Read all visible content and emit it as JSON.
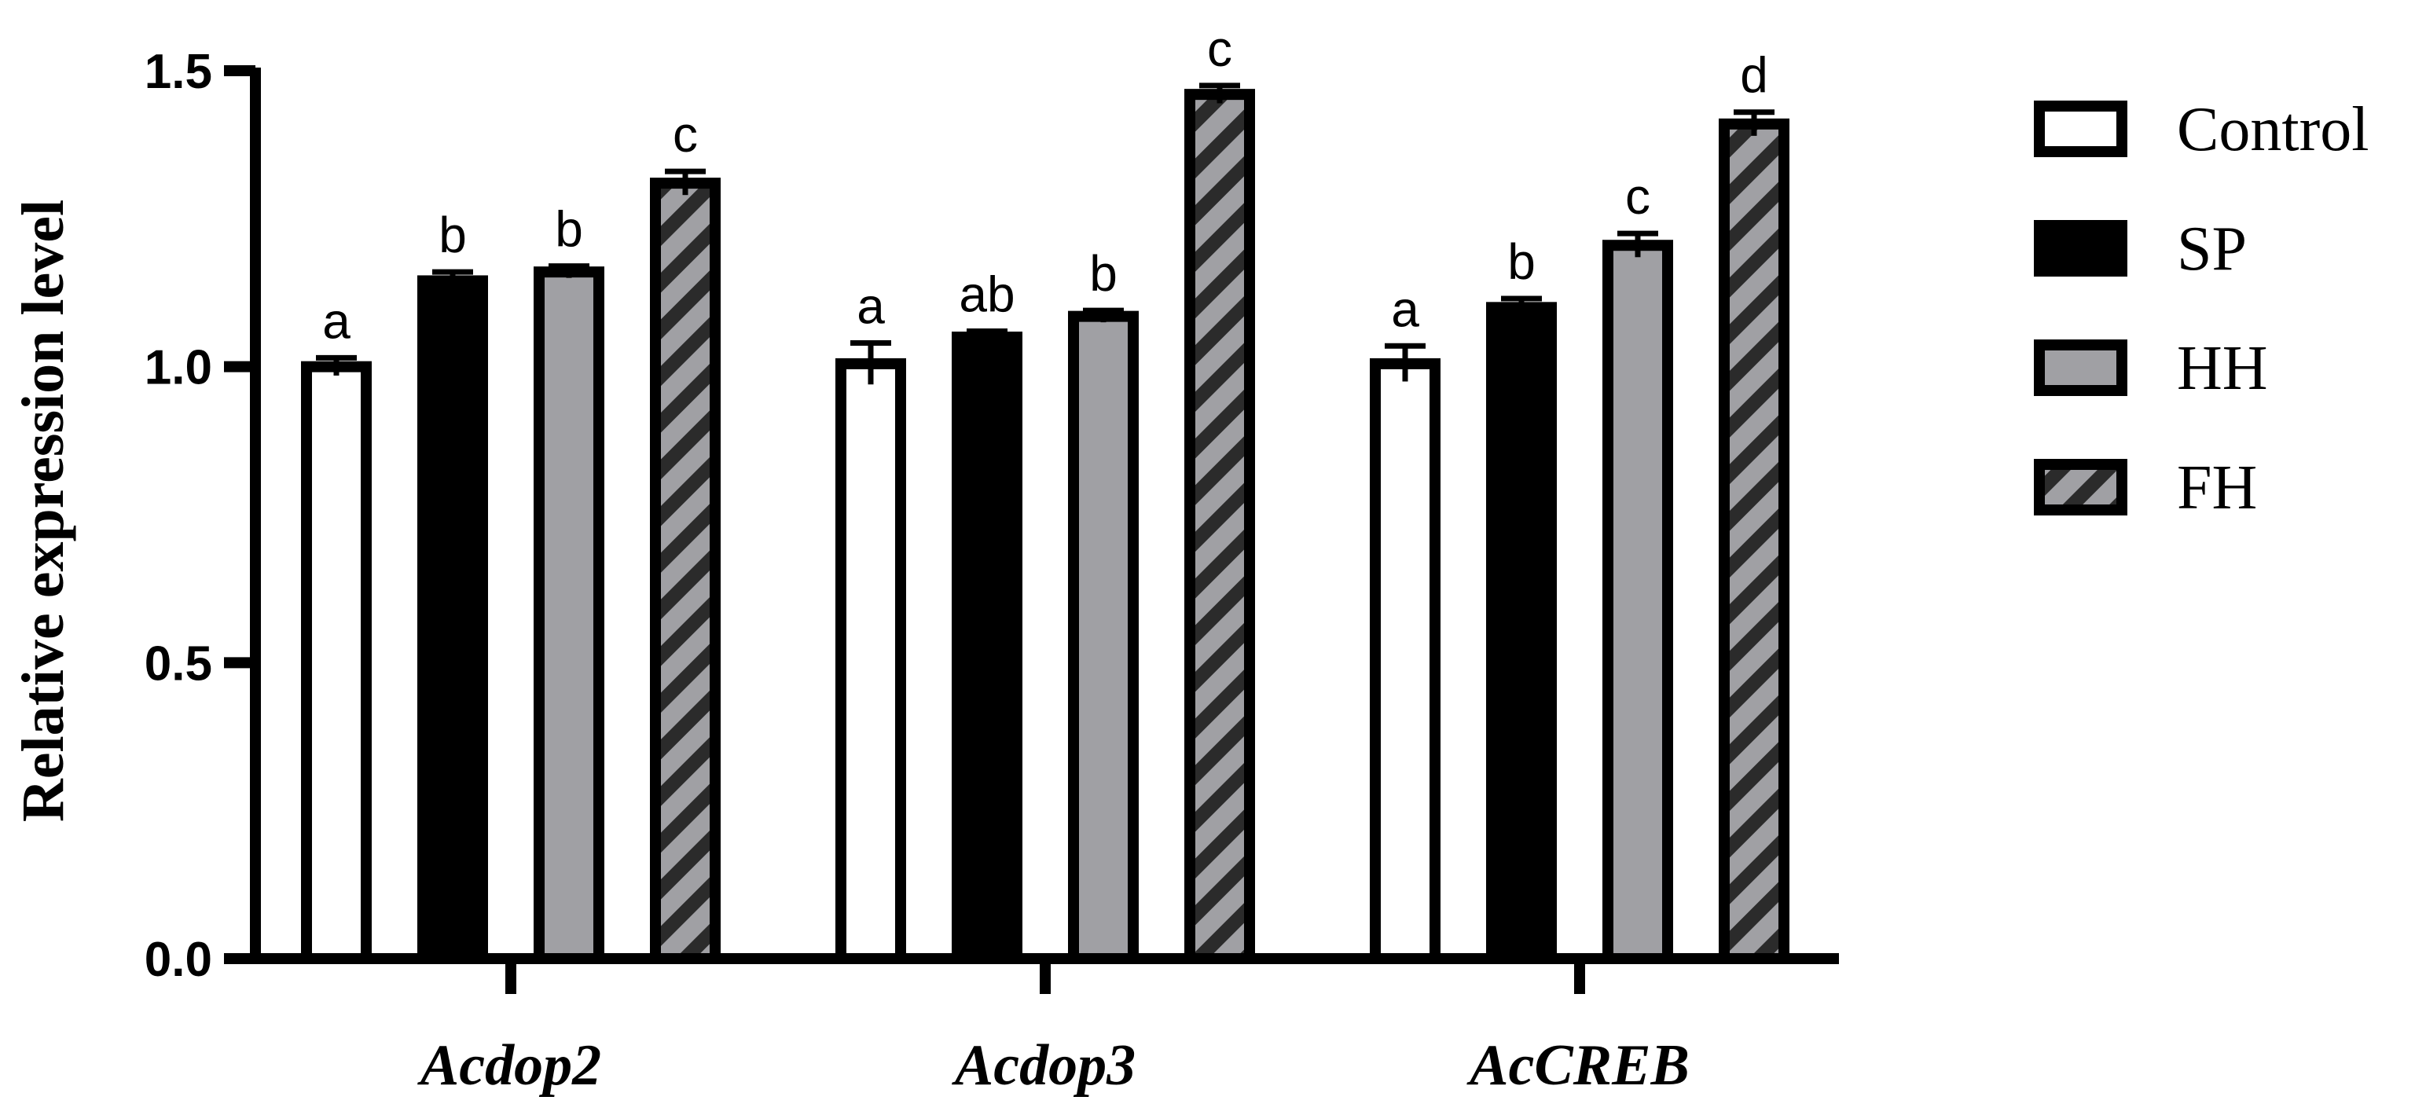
{
  "chart_data": {
    "type": "bar",
    "title": "",
    "xlabel": "",
    "ylabel": "Relative expression level",
    "ylim": [
      0,
      1.5
    ],
    "yticks": [
      "0.0",
      "0.5",
      "1.0",
      "1.5"
    ],
    "categories": [
      "Acdop2",
      "Acdop3",
      "AcCREB"
    ],
    "legend_position": "right",
    "grid": false,
    "series": [
      {
        "name": "Control",
        "fill": "#ffffff",
        "pattern": "none",
        "values": [
          1.0,
          1.005,
          1.005
        ],
        "errors": [
          0.015,
          0.035,
          0.03
        ],
        "letters": [
          "a",
          "a",
          "a"
        ]
      },
      {
        "name": "SP",
        "fill": "#000000",
        "pattern": "none",
        "values": [
          1.145,
          1.05,
          1.1
        ],
        "errors": [
          0.015,
          0.01,
          0.015
        ],
        "letters": [
          "b",
          "ab",
          "b"
        ]
      },
      {
        "name": "HH",
        "fill": "#a0a0a4",
        "pattern": "none",
        "values": [
          1.16,
          1.085,
          1.205
        ],
        "errors": [
          0.01,
          0.01,
          0.02
        ],
        "letters": [
          "b",
          "b",
          "c"
        ]
      },
      {
        "name": "FH",
        "fill": "#a0a0a4",
        "pattern": "diagonal-stripes",
        "stripe_color": "#2b2b2b",
        "values": [
          1.31,
          1.46,
          1.41
        ],
        "errors": [
          0.02,
          0.015,
          0.02
        ],
        "letters": [
          "c",
          "c",
          "d"
        ]
      }
    ]
  }
}
